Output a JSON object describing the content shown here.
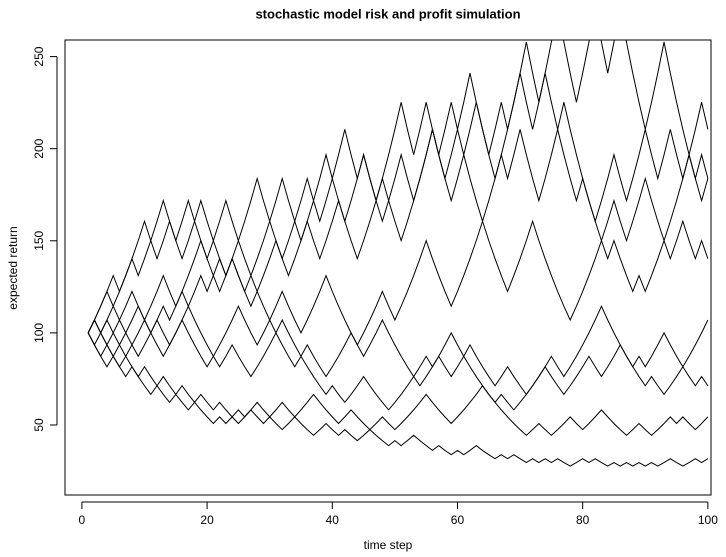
{
  "chart_data": {
    "type": "line",
    "title": "stochastic model risk and profit simulation",
    "x_label": "time step",
    "y_label": "expected return",
    "color": "#000000",
    "xlim": [
      -2.7,
      100.5
    ],
    "ylim": [
      12,
      259
    ],
    "xticks": [
      0,
      20,
      40,
      60,
      80,
      100
    ],
    "yticks": [
      50,
      100,
      150,
      200,
      250
    ],
    "x": [
      1,
      2,
      3,
      4,
      5,
      6,
      7,
      8,
      9,
      10,
      11,
      12,
      13,
      14,
      15,
      16,
      17,
      18,
      19,
      20,
      21,
      22,
      23,
      24,
      25,
      26,
      27,
      28,
      29,
      30,
      31,
      32,
      33,
      34,
      35,
      36,
      37,
      38,
      39,
      40,
      41,
      42,
      43,
      44,
      45,
      46,
      47,
      48,
      49,
      50,
      51,
      52,
      53,
      54,
      55,
      56,
      57,
      58,
      59,
      60,
      61,
      62,
      63,
      64,
      65,
      66,
      67,
      68,
      69,
      70,
      71,
      72,
      73,
      74,
      75,
      76,
      77,
      78,
      79,
      80,
      81,
      82,
      83,
      84,
      85,
      86,
      87,
      88,
      89,
      90,
      91,
      92,
      93,
      94,
      95,
      96,
      97,
      98,
      99,
      100
    ],
    "series": [
      {
        "values": [
          100,
          107,
          114.5,
          122.5,
          114.5,
          122.5,
          131.1,
          140.3,
          131.1,
          140.3,
          150.1,
          140.3,
          150.1,
          160.6,
          150.1,
          140.3,
          150.1,
          160.6,
          171.8,
          160.6,
          150.1,
          160.6,
          171.8,
          160.6,
          150.1,
          160.6,
          171.8,
          183.8,
          171.8,
          160.6,
          171.8,
          183.8,
          171.8,
          160.6,
          150.1,
          160.6,
          171.8,
          183.8,
          196.7,
          183.8,
          196.7,
          210.5,
          196.7,
          183.8,
          196.7,
          183.8,
          171.8,
          183.8,
          196.7,
          210.5,
          225.2,
          210.5,
          196.7,
          210.5,
          225.2,
          210.5,
          196.7,
          183.8,
          196.7,
          210.5,
          225.2,
          241,
          225.2,
          210.5,
          196.7,
          210.5,
          225.2,
          210.5,
          225.2,
          241,
          257.9,
          241,
          225.2,
          241,
          257.9,
          276,
          257.9,
          241,
          225.2,
          241,
          257.9,
          276,
          257.9,
          241,
          257.9,
          276,
          257.9,
          241,
          225.2,
          210.5,
          225.2,
          241,
          257.9,
          241,
          225.2,
          210.5,
          196.7,
          210.5,
          225.2,
          210.5
        ]
      },
      {
        "values": [
          100,
          93.5,
          87.3,
          93.5,
          87.3,
          81.6,
          87.3,
          81.6,
          76.3,
          81.6,
          76.3,
          71.3,
          76.3,
          71.3,
          66.6,
          71.3,
          66.6,
          62.3,
          66.6,
          62.3,
          58.2,
          62.3,
          58.2,
          54.4,
          50.8,
          54.4,
          58.2,
          54.4,
          50.8,
          54.4,
          50.8,
          47.5,
          50.8,
          54.4,
          50.8,
          47.5,
          44.4,
          47.5,
          50.8,
          47.5,
          44.4,
          47.5,
          44.4,
          41.5,
          44.4,
          47.5,
          44.4,
          41.5,
          38.8,
          41.5,
          38.8,
          41.5,
          44.4,
          41.5,
          38.8,
          36.2,
          38.8,
          36.2,
          33.9,
          36.2,
          33.9,
          36.2,
          38.8,
          36.2,
          33.9,
          31.7,
          33.9,
          31.7,
          33.9,
          31.7,
          29.6,
          31.7,
          29.6,
          31.7,
          29.6,
          31.7,
          29.6,
          27.7,
          29.6,
          31.7,
          29.6,
          31.7,
          29.6,
          27.7,
          29.6,
          27.7,
          29.6,
          27.7,
          29.6,
          27.7,
          29.6,
          27.7,
          29.6,
          31.7,
          29.6,
          27.7,
          29.6,
          31.7,
          29.6,
          31.7
        ]
      },
      {
        "values": [
          100,
          107,
          100,
          107,
          114.5,
          107,
          114.5,
          122.5,
          114.5,
          107,
          114.5,
          122.5,
          131.1,
          122.5,
          114.5,
          122.5,
          131.1,
          140.3,
          150.1,
          140.3,
          131.1,
          122.5,
          131.1,
          140.3,
          131.1,
          122.5,
          114.5,
          122.5,
          131.1,
          140.3,
          150.1,
          140.3,
          131.1,
          140.3,
          150.1,
          160.6,
          150.1,
          140.3,
          150.1,
          160.6,
          171.8,
          160.6,
          150.1,
          140.3,
          150.1,
          160.6,
          171.8,
          183.8,
          171.8,
          160.6,
          150.1,
          160.6,
          171.8,
          183.8,
          196.7,
          210.5,
          196.7,
          183.8,
          171.8,
          183.8,
          196.7,
          183.8,
          171.8,
          160.6,
          171.8,
          183.8,
          196.7,
          183.8,
          196.7,
          210.5,
          196.7,
          183.8,
          171.8,
          183.8,
          196.7,
          210.5,
          225.2,
          210.5,
          196.7,
          183.8,
          171.8,
          160.6,
          171.8,
          183.8,
          196.7,
          183.8,
          171.8,
          183.8,
          196.7,
          210.5,
          196.7,
          183.8,
          196.7,
          210.5,
          196.7,
          183.8,
          196.7,
          183.8,
          196.7,
          183.8
        ]
      },
      {
        "values": [
          100,
          93.5,
          100,
          107,
          100,
          93.5,
          100,
          107,
          114.5,
          107,
          100,
          93.5,
          87.3,
          93.5,
          100,
          107,
          100,
          93.5,
          87.3,
          81.6,
          87.3,
          93.5,
          100,
          107,
          114.5,
          107,
          100,
          93.5,
          100,
          107,
          100,
          93.5,
          87.3,
          81.6,
          87.3,
          93.5,
          87.3,
          81.6,
          76.3,
          81.6,
          87.3,
          93.5,
          100,
          93.5,
          87.3,
          93.5,
          100,
          107,
          100,
          93.5,
          87.3,
          81.6,
          76.3,
          71.3,
          76.3,
          81.6,
          87.3,
          81.6,
          76.3,
          81.6,
          87.3,
          93.5,
          87.3,
          81.6,
          76.3,
          71.3,
          76.3,
          81.6,
          76.3,
          71.3,
          66.6,
          71.3,
          76.3,
          81.6,
          76.3,
          71.3,
          66.6,
          71.3,
          76.3,
          81.6,
          87.3,
          81.6,
          76.3,
          81.6,
          87.3,
          93.5,
          87.3,
          81.6,
          76.3,
          71.3,
          76.3,
          71.3,
          66.6,
          71.3,
          76.3,
          81.6,
          76.3,
          71.3,
          76.3,
          71.3
        ]
      },
      {
        "values": [
          100,
          93.5,
          87.3,
          81.6,
          87.3,
          81.6,
          76.3,
          81.6,
          76.3,
          71.3,
          66.6,
          71.3,
          66.6,
          62.3,
          66.6,
          62.3,
          58.2,
          62.3,
          58.2,
          54.4,
          50.8,
          54.4,
          50.8,
          54.4,
          58.2,
          54.4,
          58.2,
          62.3,
          58.2,
          54.4,
          58.2,
          62.3,
          58.2,
          54.4,
          58.2,
          62.3,
          66.6,
          62.3,
          58.2,
          54.4,
          50.8,
          54.4,
          58.2,
          54.4,
          50.8,
          47.5,
          50.8,
          54.4,
          50.8,
          47.5,
          50.8,
          54.4,
          58.2,
          62.3,
          66.6,
          62.3,
          58.2,
          54.4,
          50.8,
          54.4,
          58.2,
          62.3,
          66.6,
          71.3,
          66.6,
          62.3,
          58.2,
          54.4,
          50.8,
          47.5,
          44.4,
          47.5,
          50.8,
          47.5,
          44.4,
          47.5,
          50.8,
          54.4,
          50.8,
          47.5,
          50.8,
          54.4,
          58.2,
          54.4,
          50.8,
          47.5,
          44.4,
          47.5,
          50.8,
          47.5,
          44.4,
          47.5,
          50.8,
          54.4,
          50.8,
          54.4,
          50.8,
          47.5,
          50.8,
          54.4
        ]
      },
      {
        "values": [
          100,
          107,
          114.5,
          122.5,
          131.1,
          122.5,
          131.1,
          140.3,
          150.1,
          160.6,
          150.1,
          160.6,
          171.8,
          160.6,
          150.1,
          160.6,
          171.8,
          160.6,
          150.1,
          140.3,
          150.1,
          140.3,
          131.1,
          140.3,
          131.1,
          122.5,
          131.1,
          122.5,
          114.5,
          107,
          114.5,
          122.5,
          114.5,
          107,
          100,
          107,
          114.5,
          122.5,
          131.1,
          122.5,
          114.5,
          107,
          100,
          93.5,
          100,
          107,
          114.5,
          122.5,
          114.5,
          107,
          114.5,
          122.5,
          131.1,
          140.3,
          150.1,
          140.3,
          131.1,
          122.5,
          114.5,
          122.5,
          131.1,
          140.3,
          150.1,
          160.6,
          150.1,
          140.3,
          131.1,
          122.5,
          131.1,
          140.3,
          150.1,
          160.6,
          150.1,
          140.3,
          131.1,
          122.5,
          114.5,
          107,
          114.5,
          122.5,
          131.1,
          140.3,
          150.1,
          160.6,
          171.8,
          160.6,
          150.1,
          160.6,
          171.8,
          183.8,
          171.8,
          160.6,
          150.1,
          140.3,
          150.1,
          160.6,
          150.1,
          140.3,
          150.1,
          140.3
        ]
      },
      {
        "values": [
          100,
          107,
          100,
          93.5,
          100,
          107,
          100,
          93.5,
          87.3,
          93.5,
          100,
          107,
          114.5,
          107,
          114.5,
          122.5,
          114.5,
          122.5,
          131.1,
          122.5,
          131.1,
          140.3,
          131.1,
          140.3,
          150.1,
          140.3,
          131.1,
          140.3,
          150.1,
          160.6,
          150.1,
          140.3,
          150.1,
          160.6,
          171.8,
          183.8,
          171.8,
          160.6,
          171.8,
          183.8,
          171.8,
          160.6,
          171.8,
          183.8,
          196.7,
          183.8,
          171.8,
          160.6,
          171.8,
          183.8,
          196.7,
          183.8,
          171.8,
          183.8,
          196.7,
          210.5,
          196.7,
          210.5,
          225.2,
          210.5,
          196.7,
          210.5,
          225.2,
          210.5,
          196.7,
          183.8,
          196.7,
          210.5,
          225.2,
          241,
          225.2,
          210.5,
          225.2,
          241,
          225.2,
          210.5,
          196.7,
          183.8,
          171.8,
          183.8,
          171.8,
          160.6,
          150.1,
          140.3,
          150.1,
          140.3,
          131.1,
          122.5,
          131.1,
          122.5,
          131.1,
          140.3,
          150.1,
          160.6,
          171.8,
          183.8,
          196.7,
          183.8,
          171.8,
          183.8
        ]
      },
      {
        "values": [
          100,
          107,
          100,
          93.5,
          87.3,
          93.5,
          87.3,
          93.5,
          100,
          107,
          100,
          107,
          100,
          93.5,
          100,
          107,
          114.5,
          107,
          100,
          93.5,
          87.3,
          81.6,
          87.3,
          93.5,
          87.3,
          81.6,
          76.3,
          81.6,
          87.3,
          93.5,
          100,
          107,
          100,
          93.5,
          87.3,
          81.6,
          76.3,
          71.3,
          66.6,
          71.3,
          66.6,
          62.3,
          66.6,
          71.3,
          76.3,
          71.3,
          66.6,
          62.3,
          58.2,
          62.3,
          66.6,
          71.3,
          76.3,
          81.6,
          87.3,
          81.6,
          87.3,
          93.5,
          100,
          93.5,
          87.3,
          81.6,
          76.3,
          71.3,
          66.6,
          62.3,
          66.6,
          62.3,
          58.2,
          62.3,
          66.6,
          71.3,
          76.3,
          81.6,
          87.3,
          81.6,
          76.3,
          81.6,
          87.3,
          93.5,
          100,
          107,
          114.5,
          107,
          100,
          93.5,
          87.3,
          81.6,
          87.3,
          81.6,
          87.3,
          93.5,
          100,
          93.5,
          87.3,
          81.6,
          87.3,
          93.5,
          100,
          107
        ]
      }
    ]
  }
}
